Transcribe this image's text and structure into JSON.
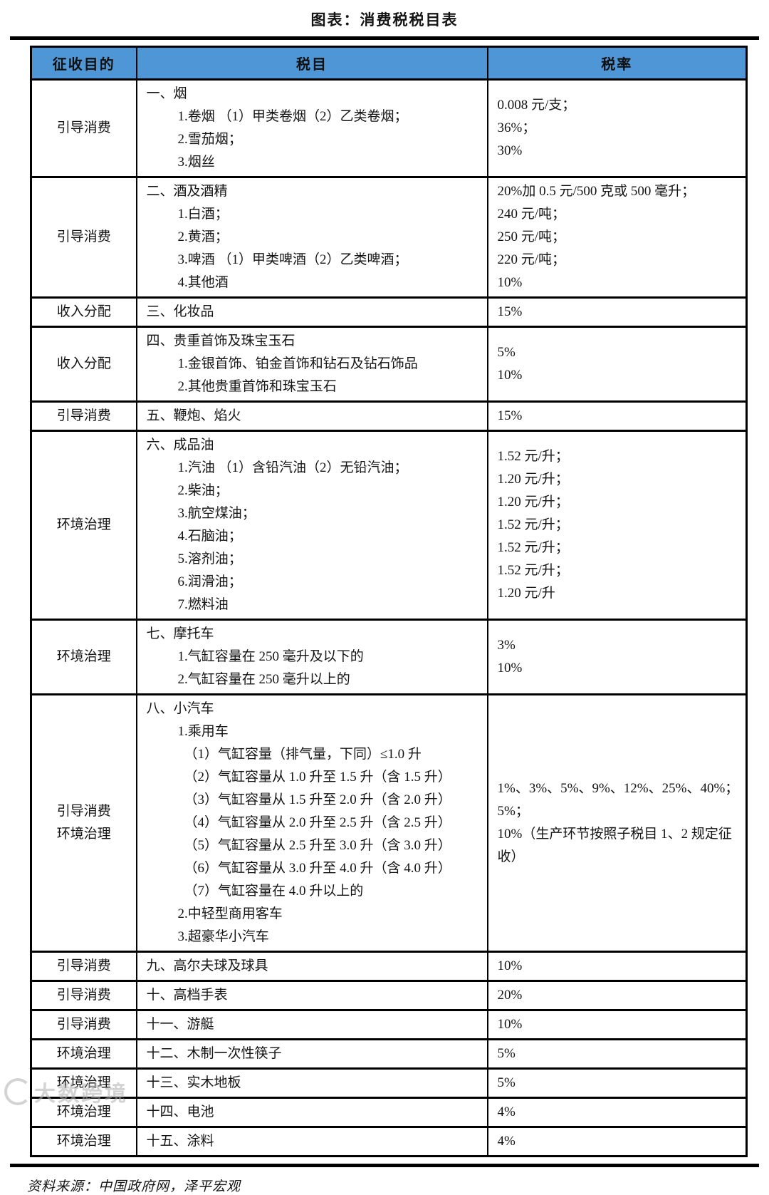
{
  "title": "图表：消费税税目表",
  "colors": {
    "header_bg": "#4E96D6",
    "border": "#000000"
  },
  "footer": {
    "source": "资料来源：中国政府网，泽平宏观"
  },
  "watermark": {
    "logo": "circle-logo-icon",
    "text": "大数跨境"
  },
  "table": {
    "headers": [
      "征收目的",
      "税目",
      "税率"
    ],
    "rows": [
      {
        "purpose": [
          "引导消费"
        ],
        "items": [
          {
            "i": 0,
            "t": "一、烟"
          },
          {
            "i": 1,
            "t": "1.卷烟 （1）甲类卷烟（2）乙类卷烟；"
          },
          {
            "i": 1,
            "t": "2.雪茄烟；"
          },
          {
            "i": 1,
            "t": "3.烟丝"
          }
        ],
        "rates": [
          "0.008 元/支；",
          "36%；",
          "30%"
        ]
      },
      {
        "purpose": [
          "引导消费"
        ],
        "items": [
          {
            "i": 0,
            "t": "二、酒及酒精"
          },
          {
            "i": 1,
            "t": "1.白酒；"
          },
          {
            "i": 1,
            "t": "2.黄酒；"
          },
          {
            "i": 1,
            "t": "3.啤酒 （1）甲类啤酒（2）乙类啤酒；"
          },
          {
            "i": 1,
            "t": "4.其他酒"
          }
        ],
        "rates": [
          "20%加 0.5 元/500 克或 500 毫升；",
          "240 元/吨；",
          "250 元/吨；",
          "220 元/吨；",
          "10%"
        ]
      },
      {
        "purpose": [
          "收入分配"
        ],
        "items": [
          {
            "i": 0,
            "t": "三、化妆品"
          }
        ],
        "rates": [
          "15%"
        ]
      },
      {
        "purpose": [
          "收入分配"
        ],
        "items": [
          {
            "i": 0,
            "t": "四、贵重首饰及珠宝玉石"
          },
          {
            "i": 1,
            "t": "1.金银首饰、铂金首饰和钻石及钻石饰品"
          },
          {
            "i": 1,
            "t": "2.其他贵重首饰和珠宝玉石"
          }
        ],
        "rates": [
          "5%",
          "10%"
        ]
      },
      {
        "purpose": [
          "引导消费"
        ],
        "items": [
          {
            "i": 0,
            "t": "五、鞭炮、焰火"
          }
        ],
        "rates": [
          "15%"
        ]
      },
      {
        "purpose": [
          "环境治理"
        ],
        "items": [
          {
            "i": 0,
            "t": "六、成品油"
          },
          {
            "i": 1,
            "t": "1.汽油 （1）含铅汽油（2）无铅汽油；"
          },
          {
            "i": 1,
            "t": "2.柴油；"
          },
          {
            "i": 1,
            "t": "3.航空煤油；"
          },
          {
            "i": 1,
            "t": "4.石脑油；"
          },
          {
            "i": 1,
            "t": "5.溶剂油；"
          },
          {
            "i": 1,
            "t": "6.润滑油；"
          },
          {
            "i": 1,
            "t": "7.燃料油"
          }
        ],
        "rates": [
          "1.52 元/升；",
          "1.20 元/升；",
          "1.20 元/升；",
          "1.52 元/升；",
          "1.52 元/升；",
          "1.52 元/升；",
          "1.20 元/升"
        ]
      },
      {
        "purpose": [
          "环境治理"
        ],
        "items": [
          {
            "i": 0,
            "t": "七、摩托车"
          },
          {
            "i": 1,
            "t": "1.气缸容量在 250 毫升及以下的"
          },
          {
            "i": 1,
            "t": "2.气缸容量在 250 毫升以上的"
          }
        ],
        "rates": [
          "3%",
          "10%"
        ]
      },
      {
        "purpose": [
          "引导消费",
          "环境治理"
        ],
        "items": [
          {
            "i": 0,
            "t": "八、小汽车"
          },
          {
            "i": 1,
            "t": "1.乘用车"
          },
          {
            "i": 2,
            "t": "（1）气缸容量（排气量，下同）≤1.0 升"
          },
          {
            "i": 2,
            "t": "（2）气缸容量从 1.0 升至 1.5 升（含 1.5 升）"
          },
          {
            "i": 2,
            "t": "（3）气缸容量从 1.5 升至 2.0 升（含 2.0 升）"
          },
          {
            "i": 2,
            "t": "（4）气缸容量从 2.0 升至 2.5 升（含 2.5 升）"
          },
          {
            "i": 2,
            "t": "（5）气缸容量从 2.5 升至 3.0 升（含 3.0 升）"
          },
          {
            "i": 2,
            "t": "（6）气缸容量从 3.0 升至 4.0 升（含 4.0 升）"
          },
          {
            "i": 2,
            "t": "（7）气缸容量在 4.0 升以上的"
          },
          {
            "i": 1,
            "t": "2.中轻型商用客车"
          },
          {
            "i": 1,
            "t": "3.超豪华小汽车"
          }
        ],
        "rates": [
          "1%、3%、5%、9%、12%、25%、40%；",
          "5%；",
          "10%（生产环节按照子税目 1、2 规定征收）"
        ]
      },
      {
        "purpose": [
          "引导消费"
        ],
        "items": [
          {
            "i": 0,
            "t": "九、高尔夫球及球具"
          }
        ],
        "rates": [
          "10%"
        ]
      },
      {
        "purpose": [
          "引导消费"
        ],
        "items": [
          {
            "i": 0,
            "t": "十、高档手表"
          }
        ],
        "rates": [
          "20%"
        ]
      },
      {
        "purpose": [
          "引导消费"
        ],
        "items": [
          {
            "i": 0,
            "t": "十一、游艇"
          }
        ],
        "rates": [
          "10%"
        ]
      },
      {
        "purpose": [
          "环境治理"
        ],
        "items": [
          {
            "i": 0,
            "t": "十二、木制一次性筷子"
          }
        ],
        "rates": [
          "5%"
        ]
      },
      {
        "purpose": [
          "环境治理"
        ],
        "items": [
          {
            "i": 0,
            "t": "十三、实木地板"
          }
        ],
        "rates": [
          "5%"
        ]
      },
      {
        "purpose": [
          "环境治理"
        ],
        "items": [
          {
            "i": 0,
            "t": "十四、电池"
          }
        ],
        "rates": [
          "4%"
        ]
      },
      {
        "purpose": [
          "环境治理"
        ],
        "items": [
          {
            "i": 0,
            "t": "十五、涂料"
          }
        ],
        "rates": [
          "4%"
        ]
      }
    ]
  }
}
